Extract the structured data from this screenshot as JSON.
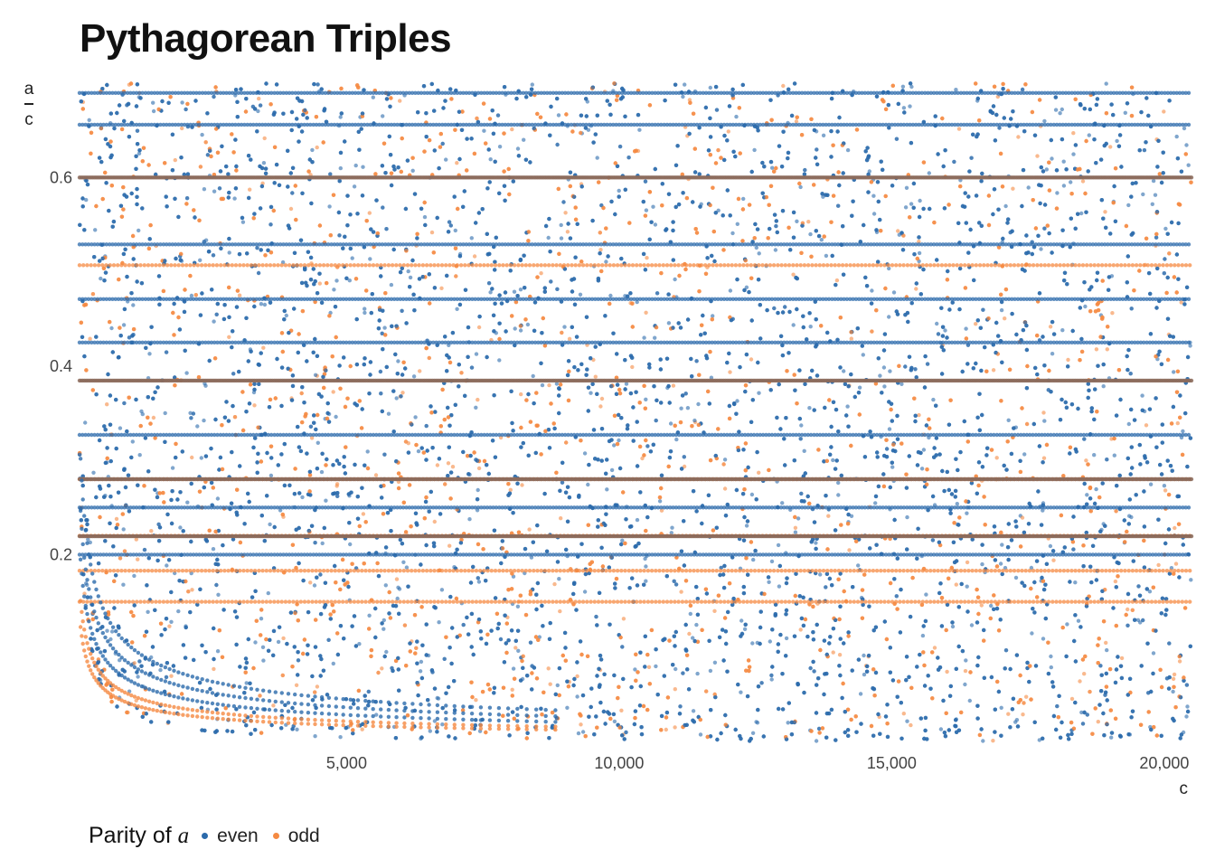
{
  "chart_data": {
    "type": "scatter",
    "title": "Pythagorean Triples",
    "xlabel": "c",
    "ylabel_numerator": "a",
    "ylabel_denominator": "c",
    "xlim": [
      100,
      20500
    ],
    "ylim": [
      0.0,
      0.7
    ],
    "x_ticks": [
      5000,
      10000,
      15000,
      20000
    ],
    "x_tick_labels": [
      "5,000",
      "10,000",
      "15,000",
      "20,000"
    ],
    "y_ticks": [
      0.2,
      0.4,
      0.6
    ],
    "y_tick_labels": [
      "0.2",
      "0.4",
      "0.6"
    ],
    "grid": false,
    "legend": {
      "position": "bottom-left",
      "title_prefix": "Parity of ",
      "title_var": "a",
      "entries": [
        {
          "name": "even",
          "color": "#2b6aab"
        },
        {
          "name": "odd",
          "color": "#f58a42"
        }
      ]
    },
    "series": [
      {
        "name": "even",
        "color": "#2b6aab",
        "dense_ratio_bands": [
          0.689655,
          0.656,
          0.529,
          0.471,
          0.425,
          0.327,
          0.25,
          0.2
        ],
        "hyperbolic_curve_families_k": [
          2.5,
          4,
          6
        ]
      },
      {
        "name": "odd",
        "color": "#f58a42",
        "dense_ratio_bands": [
          0.507,
          0.28,
          0.22,
          0.183,
          0.15
        ],
        "hyperbolic_curve_families_k": [
          1,
          1.5
        ]
      }
    ],
    "overlap_bands_ratio": [
      0.6,
      0.3846,
      0.28,
      0.2195
    ],
    "overlap_color": "#8b6a5a",
    "point_count_approx": 16000
  }
}
